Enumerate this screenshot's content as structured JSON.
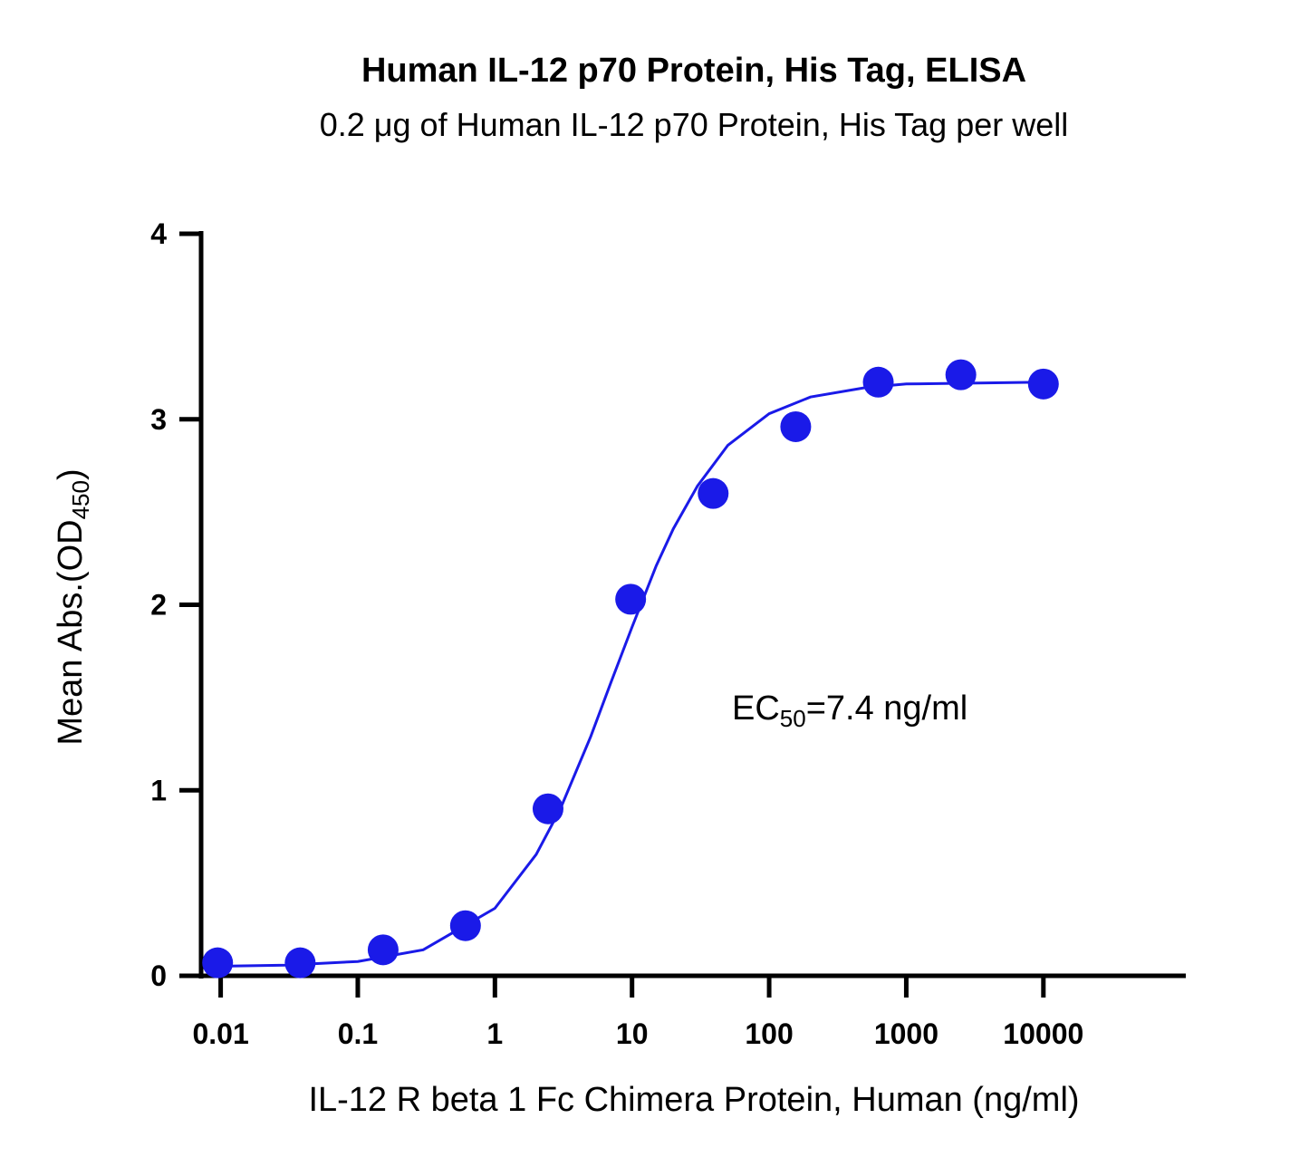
{
  "chart_data": {
    "type": "scatter",
    "title": "Human IL-12 p70 Protein, His Tag, ELISA",
    "subtitle": "0.2 μg of Human IL-12 p70 Protein, His Tag per well",
    "xlabel": "IL-12 R beta 1 Fc Chimera Protein, Human (ng/ml)",
    "ylabel": {
      "text": "Mean Abs.(OD",
      "sub": "450",
      "end": ")"
    },
    "annotation": {
      "text": "EC",
      "sub": "50",
      "end": "=7.4 ng/ml"
    },
    "xscale": "log",
    "xlim": [
      0.0072,
      106000
    ],
    "xticks": [
      0.01,
      0.1,
      1,
      10,
      100,
      1000,
      10000
    ],
    "ylim": [
      0,
      4
    ],
    "yticks": [
      0,
      1,
      2,
      3,
      4
    ],
    "color": "#1a1ae8",
    "x": [
      0.0095,
      0.038,
      0.153,
      0.61,
      2.44,
      9.77,
      39.06,
      156.25,
      625,
      2500,
      10000
    ],
    "values": [
      0.07,
      0.07,
      0.14,
      0.27,
      0.9,
      2.03,
      2.6,
      2.96,
      3.2,
      3.24,
      3.19
    ],
    "curve": {
      "x": [
        0.01,
        0.03,
        0.1,
        0.3,
        1,
        2,
        3,
        5,
        7,
        10,
        15,
        20,
        30,
        50,
        100,
        200,
        500,
        1000,
        10000
      ],
      "values": [
        0.052,
        0.057,
        0.077,
        0.14,
        0.364,
        0.654,
        0.9,
        1.29,
        1.58,
        1.88,
        2.21,
        2.41,
        2.64,
        2.86,
        3.03,
        3.12,
        3.17,
        3.19,
        3.2
      ]
    }
  }
}
